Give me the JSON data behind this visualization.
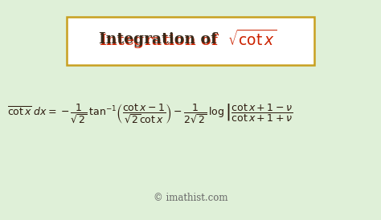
{
  "bg_color": "#dff0d8",
  "title_box_edge": "#c8a020",
  "title_box_fill": "#ffffff",
  "formula_color": "#2c1a0e",
  "title_black_color": "#3a2a1a",
  "red_color": "#cc2200",
  "watermark_color": "#666666",
  "watermark": "© imathist.com"
}
